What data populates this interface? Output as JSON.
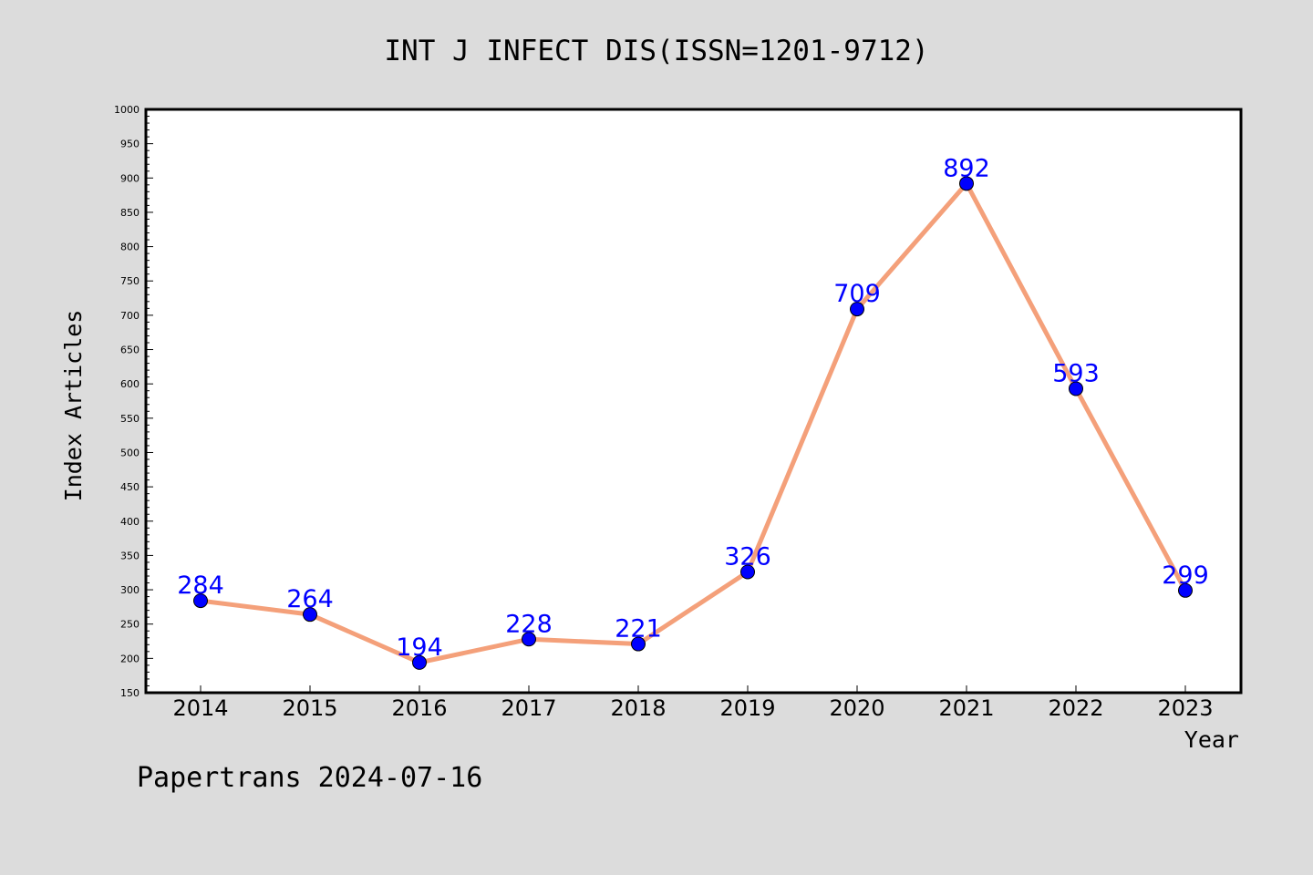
{
  "chart_data": {
    "type": "line",
    "title": "INT J INFECT DIS(ISSN=1201-9712)",
    "xlabel": "Year",
    "ylabel": "Index Articles",
    "categories": [
      "2014",
      "2015",
      "2016",
      "2017",
      "2018",
      "2019",
      "2020",
      "2021",
      "2022",
      "2023"
    ],
    "series": [
      {
        "values": [
          284,
          264,
          194,
          228,
          221,
          326,
          709,
          892,
          593,
          299
        ]
      }
    ],
    "ylim": [
      150,
      1000
    ],
    "ytick_step": 50,
    "grid": false,
    "line_color": "#f4a07a",
    "marker_color": "#0000ff",
    "label_color": "#0000ff"
  },
  "footer": {
    "text": "Papertrans 2024-07-16"
  },
  "colors": {
    "background": "#dcdcdc",
    "plot_background": "#ffffff"
  }
}
